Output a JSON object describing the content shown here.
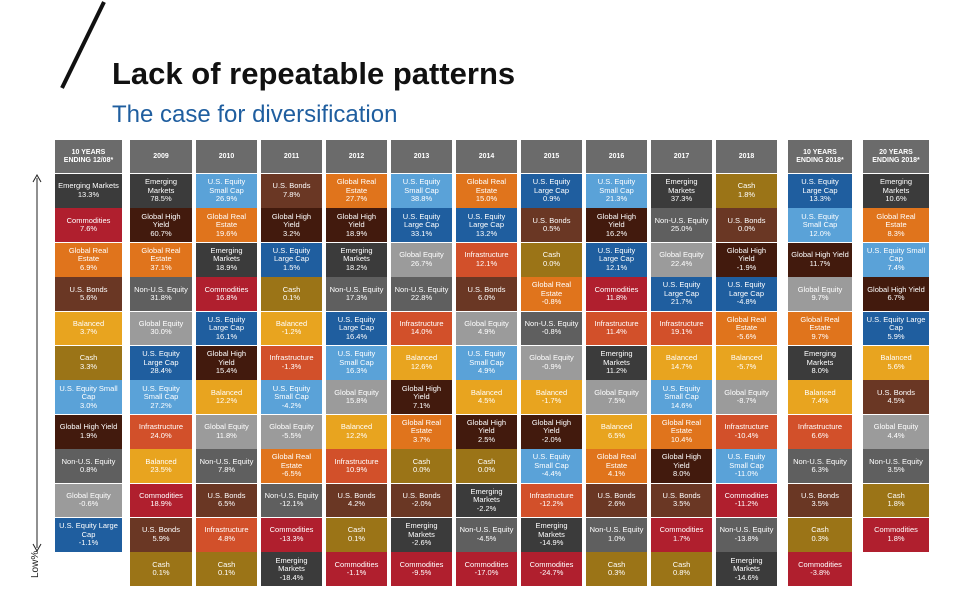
{
  "header": {
    "title": "Lack of repeatable patterns",
    "subtitle": "The case for diversification"
  },
  "axis_label": "Low%",
  "asset_colors": {
    "Emerging Markets": "#3b3b3b",
    "Commodities": "#b01f2e",
    "Global Real Estate": "#e0741c",
    "U.S. Bonds": "#6a3724",
    "Balanced": "#e8a41f",
    "Cash": "#9b7417",
    "U.S. Equity Small Cap": "#5aa2d8",
    "Global High Yield": "#421a0d",
    "Non-U.S. Equity": "#5f5f5f",
    "Global Equity": "#9b9b9b",
    "U.S. Equity Large Cap": "#1f5e9f",
    "Infrastructure": "#d2502a"
  },
  "columns": [
    {
      "header": "10 YEARS ENDING 12/08*",
      "cells": [
        {
          "name": "Emerging Markets",
          "value": "13.3%"
        },
        {
          "name": "Commodities",
          "value": "7.6%"
        },
        {
          "name": "Global Real Estate",
          "value": "6.9%"
        },
        {
          "name": "U.S. Bonds",
          "value": "5.6%"
        },
        {
          "name": "Balanced",
          "value": "3.7%"
        },
        {
          "name": "Cash",
          "value": "3.3%"
        },
        {
          "name": "U.S. Equity Small Cap",
          "value": "3.0%"
        },
        {
          "name": "Global High Yield",
          "value": "1.9%"
        },
        {
          "name": "Non-U.S. Equity",
          "value": "0.8%"
        },
        {
          "name": "Global Equity",
          "value": "-0.6%"
        },
        {
          "name": "U.S. Equity Large Cap",
          "value": "-1.1%"
        }
      ]
    },
    {
      "header": "2009",
      "cells": [
        {
          "name": "Emerging Markets",
          "value": "78.5%"
        },
        {
          "name": "Global High Yield",
          "value": "60.7%"
        },
        {
          "name": "Global Real Estate",
          "value": "37.1%"
        },
        {
          "name": "Non-U.S. Equity",
          "value": "31.8%"
        },
        {
          "name": "Global Equity",
          "value": "30.0%"
        },
        {
          "name": "U.S. Equity Large Cap",
          "value": "28.4%"
        },
        {
          "name": "U.S. Equity Small Cap",
          "value": "27.2%"
        },
        {
          "name": "Infrastructure",
          "value": "24.0%"
        },
        {
          "name": "Balanced",
          "value": "23.5%"
        },
        {
          "name": "Commodities",
          "value": "18.9%"
        },
        {
          "name": "U.S. Bonds",
          "value": "5.9%"
        },
        {
          "name": "Cash",
          "value": "0.1%"
        }
      ]
    },
    {
      "header": "2010",
      "cells": [
        {
          "name": "U.S. Equity Small Cap",
          "value": "26.9%"
        },
        {
          "name": "Global Real Estate",
          "value": "19.6%"
        },
        {
          "name": "Emerging Markets",
          "value": "18.9%"
        },
        {
          "name": "Commodities",
          "value": "16.8%"
        },
        {
          "name": "U.S. Equity Large Cap",
          "value": "16.1%"
        },
        {
          "name": "Global High Yield",
          "value": "15.4%"
        },
        {
          "name": "Balanced",
          "value": "12.2%"
        },
        {
          "name": "Global Equity",
          "value": "11.8%"
        },
        {
          "name": "Non-U.S. Equity",
          "value": "7.8%"
        },
        {
          "name": "U.S. Bonds",
          "value": "6.5%"
        },
        {
          "name": "Infrastructure",
          "value": "4.8%"
        },
        {
          "name": "Cash",
          "value": "0.1%"
        }
      ]
    },
    {
      "header": "2011",
      "cells": [
        {
          "name": "U.S. Bonds",
          "value": "7.8%"
        },
        {
          "name": "Global High Yield",
          "value": "3.2%"
        },
        {
          "name": "U.S. Equity Large Cap",
          "value": "1.5%"
        },
        {
          "name": "Cash",
          "value": "0.1%"
        },
        {
          "name": "Balanced",
          "value": "-1.2%"
        },
        {
          "name": "Infrastructure",
          "value": "-1.3%"
        },
        {
          "name": "U.S. Equity Small Cap",
          "value": "-4.2%"
        },
        {
          "name": "Global Equity",
          "value": "-5.5%"
        },
        {
          "name": "Global Real Estate",
          "value": "-6.5%"
        },
        {
          "name": "Non-U.S. Equity",
          "value": "-12.1%"
        },
        {
          "name": "Commodities",
          "value": "-13.3%"
        },
        {
          "name": "Emerging Markets",
          "value": "-18.4%"
        }
      ]
    },
    {
      "header": "2012",
      "cells": [
        {
          "name": "Global Real Estate",
          "value": "27.7%"
        },
        {
          "name": "Global High Yield",
          "value": "18.9%"
        },
        {
          "name": "Emerging Markets",
          "value": "18.2%"
        },
        {
          "name": "Non-U.S. Equity",
          "value": "17.3%"
        },
        {
          "name": "U.S. Equity Large Cap",
          "value": "16.4%"
        },
        {
          "name": "U.S. Equity Small Cap",
          "value": "16.3%"
        },
        {
          "name": "Global Equity",
          "value": "15.8%"
        },
        {
          "name": "Balanced",
          "value": "12.2%"
        },
        {
          "name": "Infrastructure",
          "value": "10.9%"
        },
        {
          "name": "U.S. Bonds",
          "value": "4.2%"
        },
        {
          "name": "Cash",
          "value": "0.1%"
        },
        {
          "name": "Commodities",
          "value": "-1.1%"
        }
      ]
    },
    {
      "header": "2013",
      "cells": [
        {
          "name": "U.S. Equity Small Cap",
          "value": "38.8%"
        },
        {
          "name": "U.S. Equity Large Cap",
          "value": "33.1%"
        },
        {
          "name": "Global Equity",
          "value": "26.7%"
        },
        {
          "name": "Non-U.S. Equity",
          "value": "22.8%"
        },
        {
          "name": "Infrastructure",
          "value": "14.0%"
        },
        {
          "name": "Balanced",
          "value": "12.6%"
        },
        {
          "name": "Global High Yield",
          "value": "7.1%"
        },
        {
          "name": "Global Real Estate",
          "value": "3.7%"
        },
        {
          "name": "Cash",
          "value": "0.0%"
        },
        {
          "name": "U.S. Bonds",
          "value": "-2.0%"
        },
        {
          "name": "Emerging Markets",
          "value": "-2.6%"
        },
        {
          "name": "Commodities",
          "value": "-9.5%"
        }
      ]
    },
    {
      "header": "2014",
      "cells": [
        {
          "name": "Global Real Estate",
          "value": "15.0%"
        },
        {
          "name": "U.S. Equity Large Cap",
          "value": "13.2%"
        },
        {
          "name": "Infrastructure",
          "value": "12.1%"
        },
        {
          "name": "U.S. Bonds",
          "value": "6.0%"
        },
        {
          "name": "Global Equity",
          "value": "4.9%"
        },
        {
          "name": "U.S. Equity Small Cap",
          "value": "4.9%"
        },
        {
          "name": "Balanced",
          "value": "4.5%"
        },
        {
          "name": "Global High Yield",
          "value": "2.5%"
        },
        {
          "name": "Cash",
          "value": "0.0%"
        },
        {
          "name": "Emerging Markets",
          "value": "-2.2%"
        },
        {
          "name": "Non-U.S. Equity",
          "value": "-4.5%"
        },
        {
          "name": "Commodities",
          "value": "-17.0%"
        }
      ]
    },
    {
      "header": "2015",
      "cells": [
        {
          "name": "U.S. Equity Large Cap",
          "value": "0.9%"
        },
        {
          "name": "U.S. Bonds",
          "value": "0.5%"
        },
        {
          "name": "Cash",
          "value": "0.0%"
        },
        {
          "name": "Global Real Estate",
          "value": "-0.8%"
        },
        {
          "name": "Non-U.S. Equity",
          "value": "-0.8%"
        },
        {
          "name": "Global Equity",
          "value": "-0.9%"
        },
        {
          "name": "Balanced",
          "value": "-1.7%"
        },
        {
          "name": "Global High Yield",
          "value": "-2.0%"
        },
        {
          "name": "U.S. Equity Small Cap",
          "value": "-4.4%"
        },
        {
          "name": "Infrastructure",
          "value": "-12.2%"
        },
        {
          "name": "Emerging Markets",
          "value": "-14.9%"
        },
        {
          "name": "Commodities",
          "value": "-24.7%"
        }
      ]
    },
    {
      "header": "2016",
      "cells": [
        {
          "name": "U.S. Equity Small Cap",
          "value": "21.3%"
        },
        {
          "name": "Global High Yield",
          "value": "16.2%"
        },
        {
          "name": "U.S. Equity Large Cap",
          "value": "12.1%"
        },
        {
          "name": "Commodities",
          "value": "11.8%"
        },
        {
          "name": "Infrastructure",
          "value": "11.4%"
        },
        {
          "name": "Emerging Markets",
          "value": "11.2%"
        },
        {
          "name": "Global Equity",
          "value": "7.5%"
        },
        {
          "name": "Balanced",
          "value": "6.5%"
        },
        {
          "name": "Global Real Estate",
          "value": "4.1%"
        },
        {
          "name": "U.S. Bonds",
          "value": "2.6%"
        },
        {
          "name": "Non-U.S. Equity",
          "value": "1.0%"
        },
        {
          "name": "Cash",
          "value": "0.3%"
        }
      ]
    },
    {
      "header": "2017",
      "cells": [
        {
          "name": "Emerging Markets",
          "value": "37.3%"
        },
        {
          "name": "Non-U.S. Equity",
          "value": "25.0%"
        },
        {
          "name": "Global Equity",
          "value": "22.4%"
        },
        {
          "name": "U.S. Equity Large Cap",
          "value": "21.7%"
        },
        {
          "name": "Infrastructure",
          "value": "19.1%"
        },
        {
          "name": "Balanced",
          "value": "14.7%"
        },
        {
          "name": "U.S. Equity Small Cap",
          "value": "14.6%"
        },
        {
          "name": "Global Real Estate",
          "value": "10.4%"
        },
        {
          "name": "Global High Yield",
          "value": "8.0%"
        },
        {
          "name": "U.S. Bonds",
          "value": "3.5%"
        },
        {
          "name": "Commodities",
          "value": "1.7%"
        },
        {
          "name": "Cash",
          "value": "0.8%"
        }
      ]
    },
    {
      "header": "2018",
      "cells": [
        {
          "name": "Cash",
          "value": "1.8%"
        },
        {
          "name": "U.S. Bonds",
          "value": "0.0%"
        },
        {
          "name": "Global High Yield",
          "value": "-1.9%"
        },
        {
          "name": "U.S. Equity Large Cap",
          "value": "-4.8%"
        },
        {
          "name": "Global Real Estate",
          "value": "-5.6%"
        },
        {
          "name": "Balanced",
          "value": "-5.7%"
        },
        {
          "name": "Global Equity",
          "value": "-8.7%"
        },
        {
          "name": "Infrastructure",
          "value": "-10.4%"
        },
        {
          "name": "U.S. Equity Small Cap",
          "value": "-11.0%"
        },
        {
          "name": "Commodities",
          "value": "-11.2%"
        },
        {
          "name": "Non-U.S. Equity",
          "value": "-13.8%"
        },
        {
          "name": "Emerging Markets",
          "value": "-14.6%"
        }
      ]
    },
    {
      "header": "10 YEARS ENDING 2018*",
      "cells": [
        {
          "name": "U.S. Equity Large Cap",
          "value": "13.3%"
        },
        {
          "name": "U.S. Equity Small Cap",
          "value": "12.0%"
        },
        {
          "name": "Global High Yield",
          "value": "11.7%"
        },
        {
          "name": "Global Equity",
          "value": "9.7%"
        },
        {
          "name": "Global Real Estate",
          "value": "9.7%"
        },
        {
          "name": "Emerging Markets",
          "value": "8.0%"
        },
        {
          "name": "Balanced",
          "value": "7.4%"
        },
        {
          "name": "Infrastructure",
          "value": "6.6%"
        },
        {
          "name": "Non-U.S. Equity",
          "value": "6.3%"
        },
        {
          "name": "U.S. Bonds",
          "value": "3.5%"
        },
        {
          "name": "Cash",
          "value": "0.3%"
        },
        {
          "name": "Commodities",
          "value": "-3.8%"
        }
      ]
    },
    {
      "header": "20 YEARS ENDING 2018*",
      "cells": [
        {
          "name": "Emerging Markets",
          "value": "10.6%"
        },
        {
          "name": "Global Real Estate",
          "value": "8.3%"
        },
        {
          "name": "U.S. Equity Small Cap",
          "value": "7.4%"
        },
        {
          "name": "Global High Yield",
          "value": "6.7%"
        },
        {
          "name": "U.S. Equity Large Cap",
          "value": "5.9%"
        },
        {
          "name": "Balanced",
          "value": "5.6%"
        },
        {
          "name": "U.S. Bonds",
          "value": "4.5%"
        },
        {
          "name": "Global Equity",
          "value": "4.4%"
        },
        {
          "name": "Non-U.S. Equity",
          "value": "3.5%"
        },
        {
          "name": "Cash",
          "value": "1.8%"
        },
        {
          "name": "Commodities",
          "value": "1.8%"
        }
      ]
    }
  ]
}
